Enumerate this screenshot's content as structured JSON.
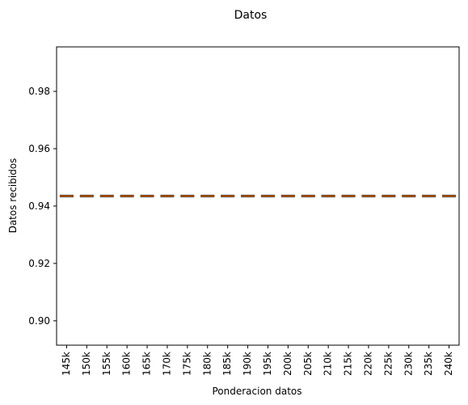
{
  "chart_data": {
    "type": "box",
    "title": "Datos",
    "xlabel": "Ponderacion datos",
    "ylabel": "Datos recibidos",
    "categories": [
      "145k",
      "150k",
      "155k",
      "160k",
      "165k",
      "170k",
      "175k",
      "180k",
      "185k",
      "190k",
      "195k",
      "200k",
      "205k",
      "210k",
      "215k",
      "220k",
      "225k",
      "230k",
      "235k",
      "240k"
    ],
    "values": [
      0.9435,
      0.9435,
      0.9435,
      0.9435,
      0.9435,
      0.9435,
      0.9435,
      0.9435,
      0.9435,
      0.9435,
      0.9435,
      0.9435,
      0.9435,
      0.9435,
      0.9435,
      0.9435,
      0.9435,
      0.9435,
      0.9435,
      0.9435
    ],
    "ylim": [
      0.8915,
      0.9955
    ],
    "yticks": [
      0.9,
      0.92,
      0.94,
      0.96,
      0.98
    ],
    "ytick_labels": [
      "0.90",
      "0.92",
      "0.94",
      "0.96",
      "0.98"
    ],
    "grid": false,
    "colors": {
      "box": "#000000",
      "median": "#ff7f0e",
      "axes": "#000000"
    }
  }
}
